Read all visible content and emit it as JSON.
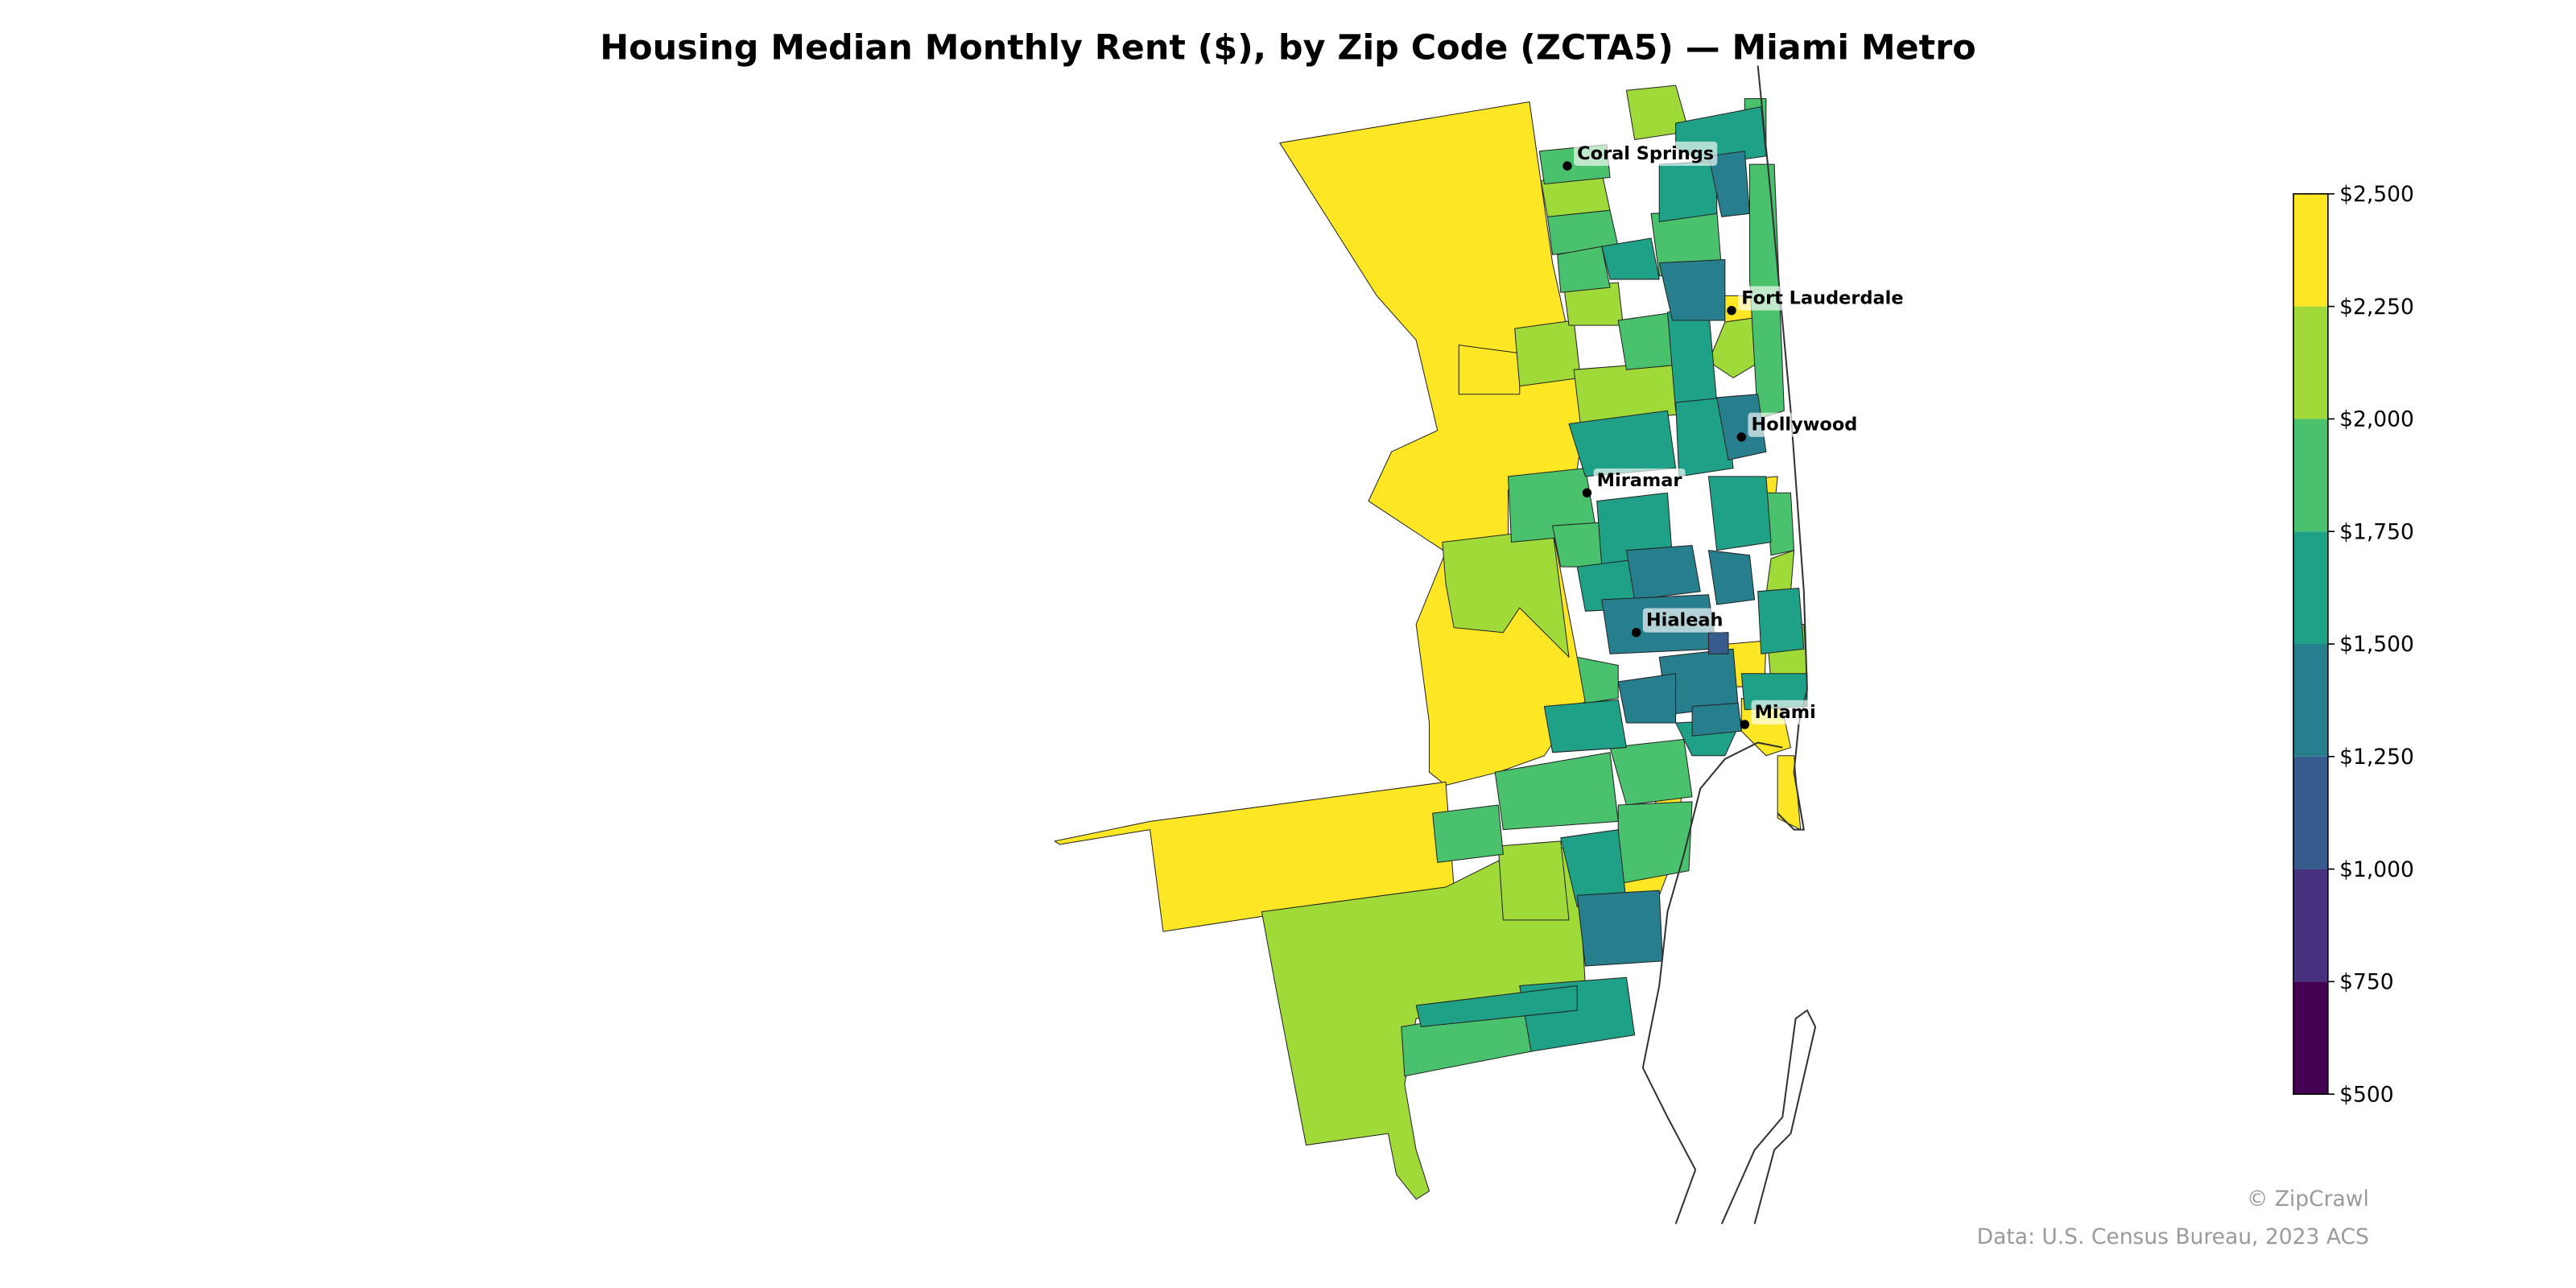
{
  "title": "Housing Median Monthly Rent ($), by Zip Code (ZCTA5) — Miami Metro",
  "cities": [
    {
      "name": "Coral Springs"
    },
    {
      "name": "Fort Lauderdale"
    },
    {
      "name": "Hollywood"
    },
    {
      "name": "Miramar"
    },
    {
      "name": "Hialeah"
    },
    {
      "name": "Miami"
    }
  ],
  "colorbar": {
    "min": 500,
    "max": 2500,
    "ticks": [
      {
        "value": 500,
        "label": "$500"
      },
      {
        "value": 750,
        "label": "$750"
      },
      {
        "value": 1000,
        "label": "$1,000"
      },
      {
        "value": 1250,
        "label": "$1,250"
      },
      {
        "value": 1500,
        "label": "$1,500"
      },
      {
        "value": 1750,
        "label": "$1,750"
      },
      {
        "value": 2000,
        "label": "$2,000"
      },
      {
        "value": 2250,
        "label": "$2,250"
      },
      {
        "value": 2500,
        "label": "$2,500"
      }
    ],
    "bin_colors": [
      "#440154",
      "#46327e",
      "#365c8d",
      "#277f8e",
      "#1fa187",
      "#4ac16d",
      "#a0da39",
      "#fde725"
    ]
  },
  "footer": {
    "copyright": "© ZipCrawl",
    "source": "Data: U.S. Census Bureau, 2023 ACS"
  }
}
